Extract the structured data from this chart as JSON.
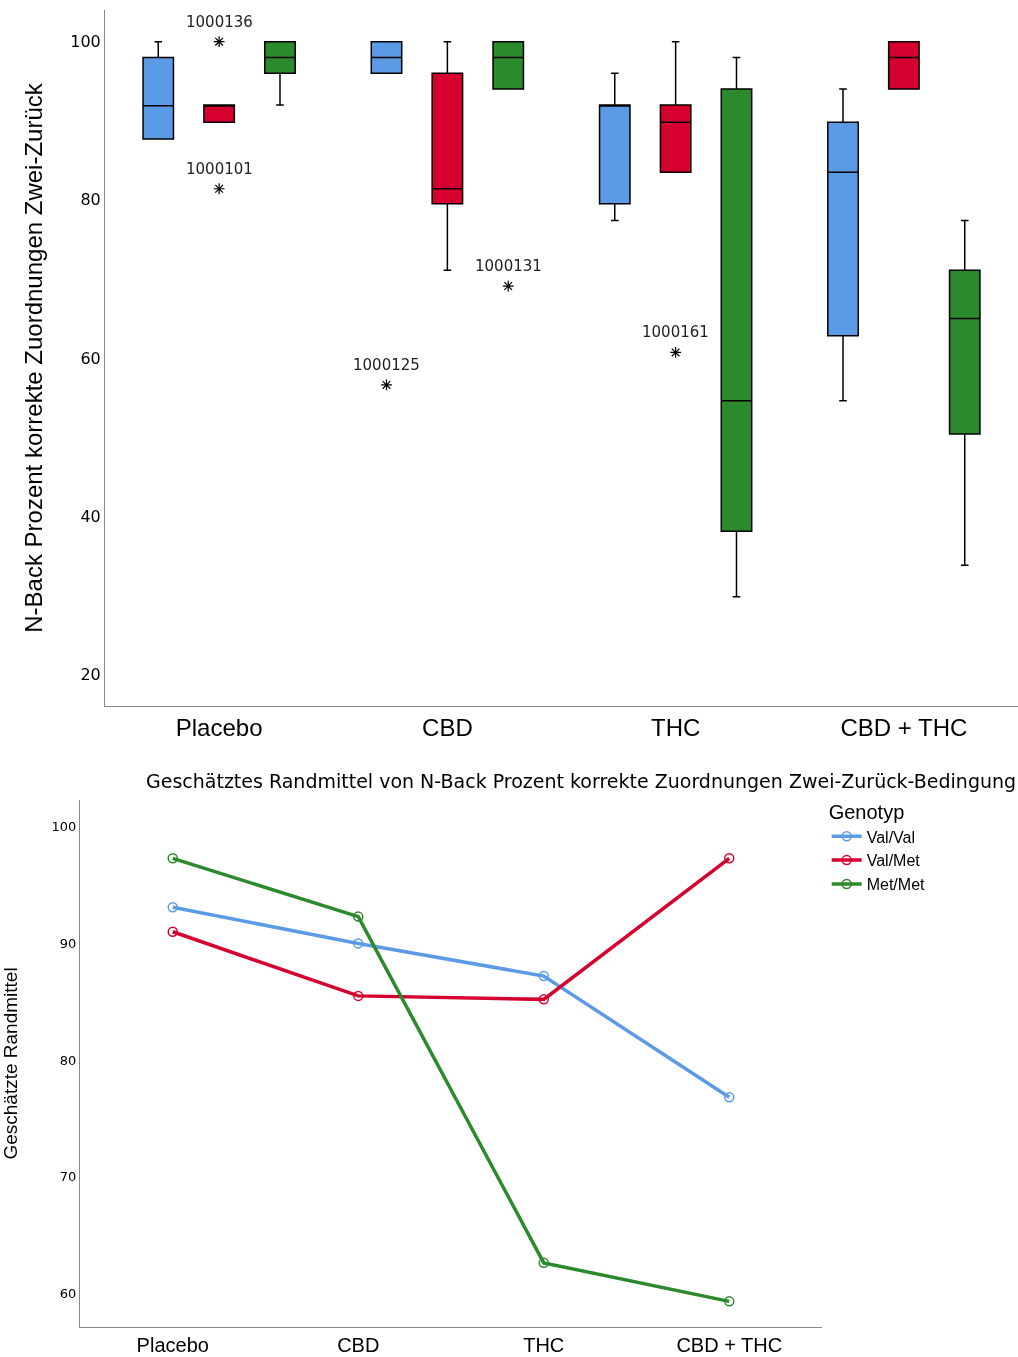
{
  "chart_data": [
    {
      "type": "box",
      "ylabel": "N-Back Prozent korrekte Zuordnungen Zwei-Zurück",
      "categories": [
        "Placebo",
        "CBD",
        "THC",
        "CBD + THC"
      ],
      "ylim": [
        16,
        104
      ],
      "yticks": [
        20,
        40,
        60,
        80,
        100
      ],
      "marker": "star",
      "series": [
        {
          "color": "#5b9be6",
          "boxes": [
            {
              "low": 87.7,
              "q1": 87.7,
              "median": 91.9,
              "q3": 98,
              "high": 100
            },
            {
              "low": 96,
              "q1": 96,
              "median": 98,
              "q3": 100,
              "high": 100,
              "outliers": [
                56.6
              ]
            },
            {
              "low": 77.4,
              "q1": 79.5,
              "median": 92,
              "q3": 92,
              "high": 96
            },
            {
              "low": 54.6,
              "q1": 62.8,
              "median": 83.5,
              "q3": 89.8,
              "high": 94
            }
          ]
        },
        {
          "color": "#d6002f",
          "boxes": [
            {
              "low": 89.8,
              "q1": 89.8,
              "median": 92,
              "q3": 92,
              "high": 92,
              "outliers": [
                100,
                81.4
              ]
            },
            {
              "low": 71.1,
              "q1": 79.5,
              "median": 81.4,
              "q3": 96,
              "high": 100
            },
            {
              "low": 83.5,
              "q1": 83.5,
              "median": 89.8,
              "q3": 92,
              "high": 100,
              "outliers": [
                60.7
              ]
            },
            {
              "low": 94,
              "q1": 94,
              "median": 98,
              "q3": 100,
              "high": 100
            }
          ]
        },
        {
          "color": "#2b8a2b",
          "boxes": [
            {
              "low": 92,
              "q1": 96,
              "median": 98,
              "q3": 100,
              "high": 100
            },
            {
              "low": 94,
              "q1": 94,
              "median": 98,
              "q3": 100,
              "high": 100,
              "outliers": [
                69.1
              ]
            },
            {
              "low": 29.8,
              "q1": 38.1,
              "median": 54.6,
              "q3": 94,
              "high": 98
            },
            {
              "low": 33.8,
              "q1": 50.4,
              "median": 65,
              "q3": 71.1,
              "high": 77.4
            }
          ]
        }
      ],
      "annotations": [
        "1000136",
        "1000101",
        "1000125",
        "1000131",
        "1000161"
      ]
    },
    {
      "type": "line",
      "title": "Geschätztes Randmittel von N-Back Prozent korrekte Zuordnungen Zwei-Zurück-Bedingung",
      "ylabel": "Geschätzte Randmittel",
      "legend_title": "Genotyp",
      "legend": "top right",
      "marker": "circle",
      "line_style": "solid",
      "categories": [
        "Placebo",
        "CBD",
        "THC",
        "CBD + THC"
      ],
      "ylim": [
        57.1,
        102.3
      ],
      "yticks": [
        60,
        70,
        80,
        90,
        100
      ],
      "series": [
        {
          "name": "Val/Val",
          "color": "#5b9be6",
          "values": [
            93.1,
            90.0,
            87.2,
            76.8
          ]
        },
        {
          "name": "Val/Met",
          "color": "#d6002f",
          "values": [
            91.0,
            85.5,
            85.2,
            97.3
          ]
        },
        {
          "name": "Met/Met",
          "color": "#2b8a2b",
          "values": [
            97.3,
            92.3,
            62.6,
            59.3
          ]
        }
      ]
    }
  ]
}
